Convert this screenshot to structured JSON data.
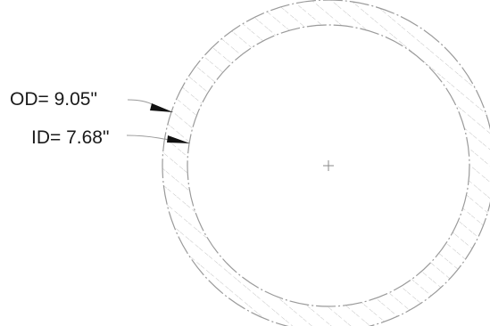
{
  "labels": {
    "outer_diameter": "OD= 9.05\"",
    "inner_diameter": "ID= 7.68\""
  },
  "dimensions": {
    "outer_diameter_in": 9.05,
    "inner_diameter_in": 7.68
  },
  "colors": {
    "line": "#9a9a9a",
    "hatch": "#c4c4c4",
    "text": "#1a1a1a",
    "arrow": "#111111"
  }
}
